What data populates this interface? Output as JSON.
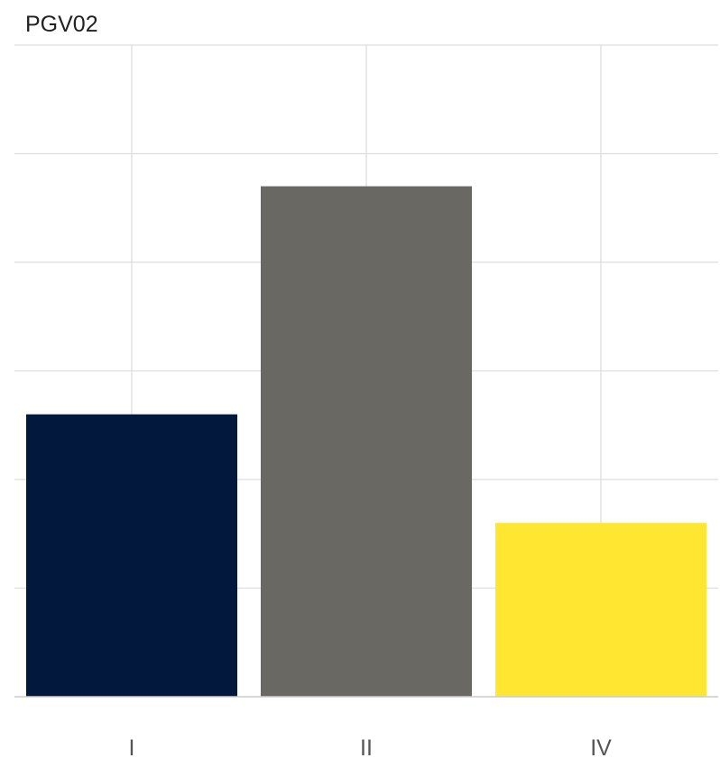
{
  "chart_data": {
    "type": "bar",
    "title": "PGV02",
    "xlabel": "",
    "ylabel": "",
    "categories": [
      "I",
      "II",
      "IV"
    ],
    "values": [
      2.6,
      4.7,
      1.6
    ],
    "bar_colors": [
      "#03183d",
      "#6a6863",
      "#ffe631"
    ],
    "ylim": [
      0,
      6
    ],
    "y_ticks_shown": false,
    "grid": true,
    "legend": "none",
    "colors": {
      "background": "#ffffff",
      "grid": "#dddddd",
      "baseline": "#cccccc",
      "title": "#222222",
      "tick_label": "#555555"
    }
  }
}
